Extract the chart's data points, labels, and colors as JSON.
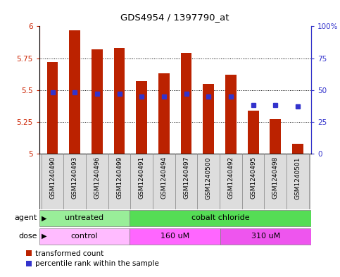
{
  "title": "GDS4954 / 1397790_at",
  "samples": [
    "GSM1240490",
    "GSM1240493",
    "GSM1240496",
    "GSM1240499",
    "GSM1240491",
    "GSM1240494",
    "GSM1240497",
    "GSM1240500",
    "GSM1240492",
    "GSM1240495",
    "GSM1240498",
    "GSM1240501"
  ],
  "bar_values": [
    5.72,
    5.97,
    5.82,
    5.83,
    5.57,
    5.63,
    5.79,
    5.55,
    5.62,
    5.34,
    5.27,
    5.08
  ],
  "bar_base": 5.0,
  "percentile_values": [
    48,
    48,
    47,
    47,
    45,
    45,
    47,
    45,
    45,
    38,
    38,
    37
  ],
  "bar_color": "#BB2200",
  "percentile_color": "#3333CC",
  "ylim_left": [
    5.0,
    6.0
  ],
  "ylim_right": [
    0,
    100
  ],
  "yticks_left": [
    5.0,
    5.25,
    5.5,
    5.75,
    6.0
  ],
  "yticks_right": [
    0,
    25,
    50,
    75,
    100
  ],
  "ytick_labels_left": [
    "5",
    "5.25",
    "5.5",
    "5.75",
    "6"
  ],
  "ytick_labels_right": [
    "0",
    "25",
    "50",
    "75",
    "100%"
  ],
  "agent_groups": [
    {
      "label": "untreated",
      "start": 0,
      "end": 3,
      "color": "#99EE99"
    },
    {
      "label": "cobalt chloride",
      "start": 4,
      "end": 11,
      "color": "#55DD55"
    }
  ],
  "dose_groups": [
    {
      "label": "control",
      "start": 0,
      "end": 3,
      "color": "#FFBBFF"
    },
    {
      "label": "160 uM",
      "start": 4,
      "end": 7,
      "color": "#FF66FF"
    },
    {
      "label": "310 uM",
      "start": 8,
      "end": 11,
      "color": "#EE55EE"
    }
  ],
  "agent_label": "agent",
  "dose_label": "dose",
  "legend_transformed": "transformed count",
  "legend_percentile": "percentile rank within the sample",
  "grid_color": "#000000",
  "plot_bg_color": "#FFFFFF",
  "tick_color_left": "#CC2200",
  "tick_color_right": "#3333CC",
  "bar_width": 0.5,
  "percentile_marker_size": 5,
  "dotted_grid_lines": [
    5.25,
    5.5,
    5.75
  ]
}
